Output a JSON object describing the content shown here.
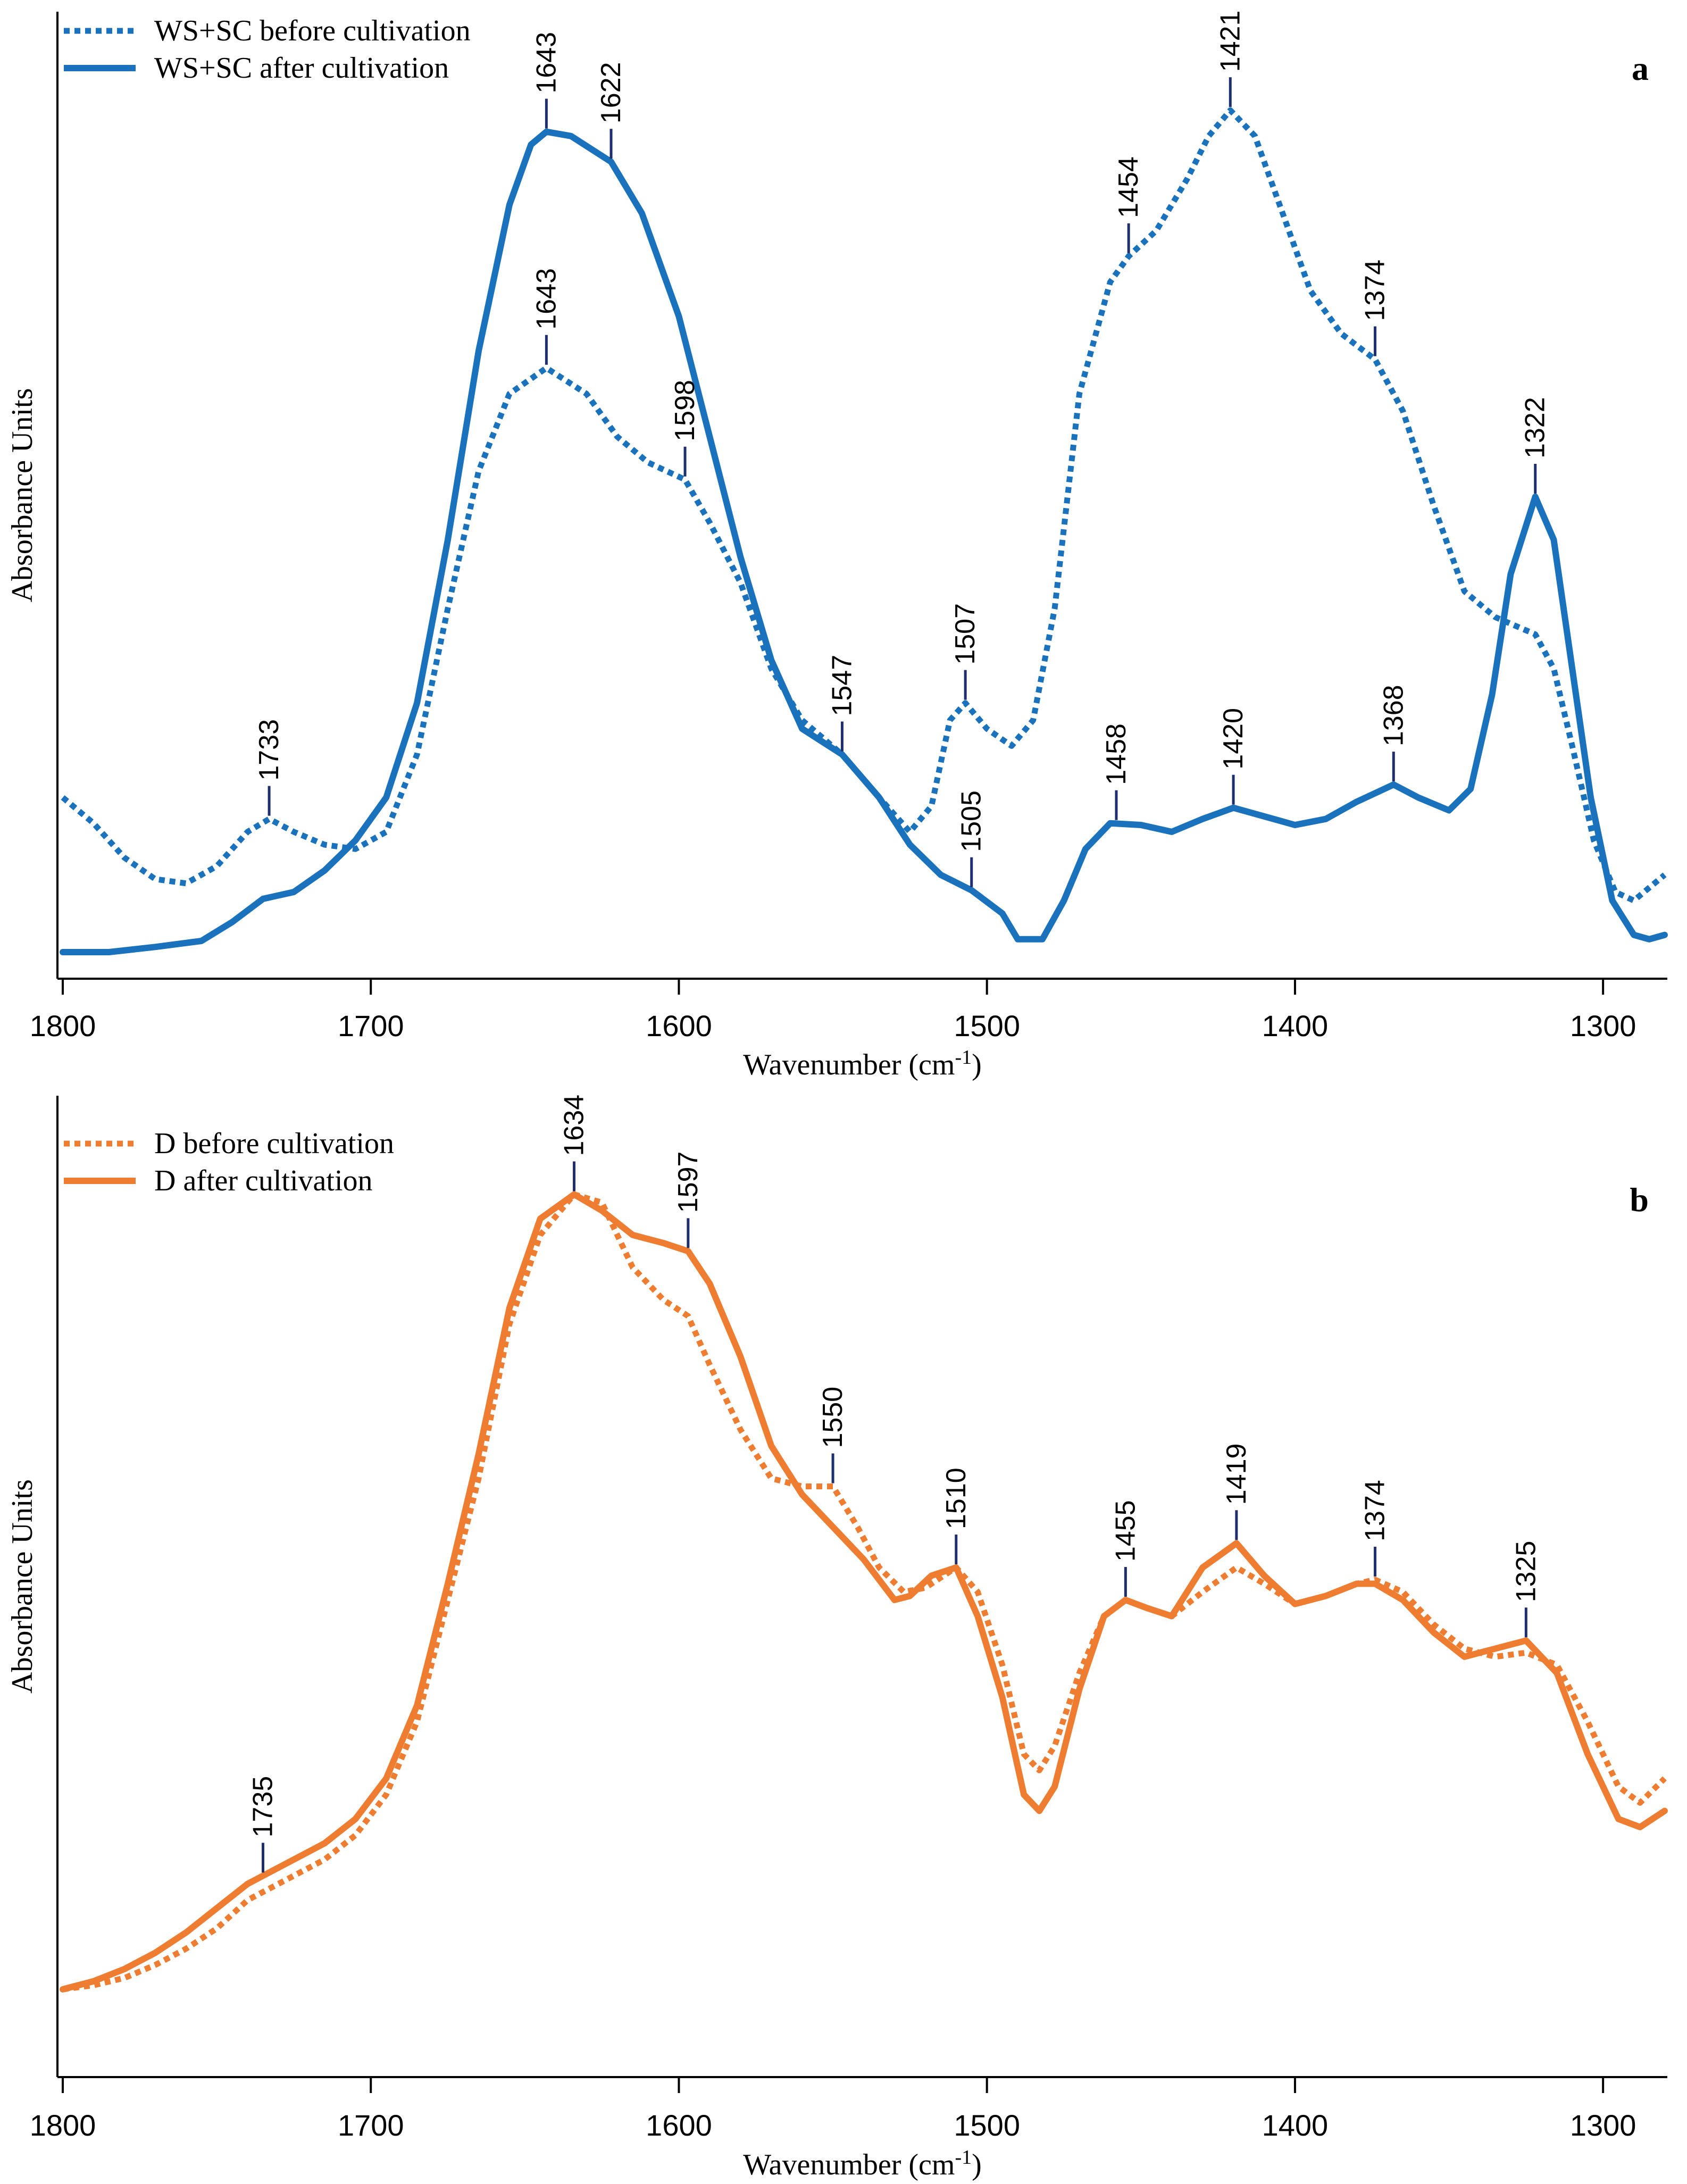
{
  "figure": {
    "tick_color": "#1f2f6e",
    "axis_color": "#000000"
  },
  "chart_data": [
    {
      "type": "line",
      "panel_label": "a",
      "title": "",
      "xlabel": "Wavenumber (cm",
      "xlabel_sup": "-1",
      "xlabel_close": ")",
      "ylabel": "Absorbance Units",
      "xlim": [
        1800,
        1280
      ],
      "ylim": [
        0,
        1
      ],
      "xticks": [
        "1800",
        "1700",
        "1600",
        "1500",
        "1400",
        "1300"
      ],
      "legend_position": "top-left",
      "series": [
        {
          "name": "WS+SC before cultivation",
          "style": "dotted",
          "color": "#1a72bd",
          "points": [
            [
              1800,
              0.18
            ],
            [
              1790,
              0.15
            ],
            [
              1780,
              0.11
            ],
            [
              1770,
              0.085
            ],
            [
              1760,
              0.08
            ],
            [
              1750,
              0.1
            ],
            [
              1740,
              0.14
            ],
            [
              1733,
              0.155
            ],
            [
              1725,
              0.14
            ],
            [
              1715,
              0.125
            ],
            [
              1705,
              0.12
            ],
            [
              1695,
              0.14
            ],
            [
              1685,
              0.23
            ],
            [
              1675,
              0.4
            ],
            [
              1665,
              0.56
            ],
            [
              1655,
              0.65
            ],
            [
              1643,
              0.68
            ],
            [
              1630,
              0.65
            ],
            [
              1620,
              0.6
            ],
            [
              1610,
              0.57
            ],
            [
              1598,
              0.55
            ],
            [
              1590,
              0.5
            ],
            [
              1580,
              0.43
            ],
            [
              1570,
              0.33
            ],
            [
              1560,
              0.27
            ],
            [
              1547,
              0.23
            ],
            [
              1535,
              0.18
            ],
            [
              1525,
              0.14
            ],
            [
              1518,
              0.17
            ],
            [
              1512,
              0.27
            ],
            [
              1507,
              0.29
            ],
            [
              1500,
              0.26
            ],
            [
              1492,
              0.24
            ],
            [
              1485,
              0.27
            ],
            [
              1478,
              0.4
            ],
            [
              1470,
              0.65
            ],
            [
              1460,
              0.78
            ],
            [
              1454,
              0.81
            ],
            [
              1445,
              0.84
            ],
            [
              1435,
              0.9
            ],
            [
              1428,
              0.95
            ],
            [
              1421,
              0.98
            ],
            [
              1413,
              0.95
            ],
            [
              1405,
              0.87
            ],
            [
              1395,
              0.77
            ],
            [
              1385,
              0.72
            ],
            [
              1374,
              0.69
            ],
            [
              1365,
              0.63
            ],
            [
              1355,
              0.52
            ],
            [
              1345,
              0.42
            ],
            [
              1335,
              0.39
            ],
            [
              1322,
              0.37
            ],
            [
              1316,
              0.33
            ],
            [
              1310,
              0.24
            ],
            [
              1303,
              0.13
            ],
            [
              1296,
              0.07
            ],
            [
              1290,
              0.06
            ],
            [
              1285,
              0.075
            ],
            [
              1280,
              0.09
            ]
          ]
        },
        {
          "name": "WS+SC after cultivation",
          "style": "solid",
          "color": "#1a72bd",
          "points": [
            [
              1800,
              0.0
            ],
            [
              1785,
              0.0
            ],
            [
              1770,
              0.006
            ],
            [
              1755,
              0.013
            ],
            [
              1745,
              0.035
            ],
            [
              1735,
              0.062
            ],
            [
              1725,
              0.07
            ],
            [
              1715,
              0.095
            ],
            [
              1705,
              0.13
            ],
            [
              1695,
              0.18
            ],
            [
              1685,
              0.29
            ],
            [
              1675,
              0.48
            ],
            [
              1665,
              0.7
            ],
            [
              1655,
              0.87
            ],
            [
              1648,
              0.94
            ],
            [
              1643,
              0.955
            ],
            [
              1635,
              0.95
            ],
            [
              1622,
              0.92
            ],
            [
              1612,
              0.86
            ],
            [
              1600,
              0.74
            ],
            [
              1590,
              0.6
            ],
            [
              1580,
              0.46
            ],
            [
              1570,
              0.34
            ],
            [
              1560,
              0.26
            ],
            [
              1547,
              0.23
            ],
            [
              1535,
              0.18
            ],
            [
              1525,
              0.125
            ],
            [
              1515,
              0.09
            ],
            [
              1505,
              0.072
            ],
            [
              1495,
              0.045
            ],
            [
              1490,
              0.015
            ],
            [
              1482,
              0.015
            ],
            [
              1475,
              0.06
            ],
            [
              1468,
              0.12
            ],
            [
              1460,
              0.15
            ],
            [
              1450,
              0.148
            ],
            [
              1440,
              0.14
            ],
            [
              1430,
              0.155
            ],
            [
              1420,
              0.168
            ],
            [
              1410,
              0.158
            ],
            [
              1400,
              0.148
            ],
            [
              1390,
              0.155
            ],
            [
              1380,
              0.175
            ],
            [
              1368,
              0.195
            ],
            [
              1360,
              0.18
            ],
            [
              1350,
              0.165
            ],
            [
              1343,
              0.19
            ],
            [
              1336,
              0.3
            ],
            [
              1330,
              0.44
            ],
            [
              1322,
              0.53
            ],
            [
              1316,
              0.48
            ],
            [
              1310,
              0.33
            ],
            [
              1304,
              0.18
            ],
            [
              1297,
              0.06
            ],
            [
              1290,
              0.02
            ],
            [
              1285,
              0.015
            ],
            [
              1280,
              0.02
            ]
          ]
        }
      ],
      "annotations": [
        {
          "label": "1733",
          "x": 1733,
          "y": 0.155
        },
        {
          "label": "1643",
          "x": 1643,
          "y": 0.955
        },
        {
          "label": "1622",
          "x": 1622,
          "y": 0.92
        },
        {
          "label": "1643",
          "x": 1643,
          "y": 0.68
        },
        {
          "label": "1598",
          "x": 1598,
          "y": 0.55
        },
        {
          "label": "1547",
          "x": 1547,
          "y": 0.23
        },
        {
          "label": "1507",
          "x": 1507,
          "y": 0.29
        },
        {
          "label": "1505",
          "x": 1505,
          "y": 0.072
        },
        {
          "label": "1458",
          "x": 1458,
          "y": 0.15
        },
        {
          "label": "1454",
          "x": 1454,
          "y": 0.81
        },
        {
          "label": "1421",
          "x": 1421,
          "y": 0.98
        },
        {
          "label": "1420",
          "x": 1420,
          "y": 0.168
        },
        {
          "label": "1374",
          "x": 1374,
          "y": 0.69
        },
        {
          "label": "1368",
          "x": 1368,
          "y": 0.195
        },
        {
          "label": "1322",
          "x": 1322,
          "y": 0.53
        }
      ]
    },
    {
      "type": "line",
      "panel_label": "b",
      "title": "",
      "xlabel": "Wavenumber (cm",
      "xlabel_sup": "-1",
      "xlabel_close": ")",
      "ylabel": "Absorbance Units",
      "xlim": [
        1800,
        1280
      ],
      "ylim": [
        0,
        1
      ],
      "xticks": [
        "1800",
        "1700",
        "1600",
        "1500",
        "1400",
        "1300"
      ],
      "legend_position": "top-left",
      "series": [
        {
          "name": "D before cultivation",
          "style": "dotted",
          "color": "#ee7d31",
          "points": [
            [
              1800,
              0.0
            ],
            [
              1790,
              0.005
            ],
            [
              1780,
              0.014
            ],
            [
              1770,
              0.03
            ],
            [
              1760,
              0.05
            ],
            [
              1750,
              0.075
            ],
            [
              1740,
              0.11
            ],
            [
              1735,
              0.12
            ],
            [
              1725,
              0.14
            ],
            [
              1715,
              0.16
            ],
            [
              1705,
              0.19
            ],
            [
              1695,
              0.24
            ],
            [
              1685,
              0.33
            ],
            [
              1675,
              0.48
            ],
            [
              1665,
              0.63
            ],
            [
              1655,
              0.82
            ],
            [
              1645,
              0.93
            ],
            [
              1634,
              0.98
            ],
            [
              1625,
              0.97
            ],
            [
              1615,
              0.89
            ],
            [
              1605,
              0.85
            ],
            [
              1597,
              0.83
            ],
            [
              1590,
              0.77
            ],
            [
              1580,
              0.69
            ],
            [
              1570,
              0.63
            ],
            [
              1560,
              0.62
            ],
            [
              1550,
              0.62
            ],
            [
              1542,
              0.57
            ],
            [
              1535,
              0.52
            ],
            [
              1527,
              0.49
            ],
            [
              1520,
              0.495
            ],
            [
              1510,
              0.52
            ],
            [
              1503,
              0.49
            ],
            [
              1495,
              0.4
            ],
            [
              1488,
              0.29
            ],
            [
              1483,
              0.27
            ],
            [
              1478,
              0.3
            ],
            [
              1470,
              0.39
            ],
            [
              1462,
              0.46
            ],
            [
              1455,
              0.48
            ],
            [
              1448,
              0.47
            ],
            [
              1440,
              0.46
            ],
            [
              1430,
              0.49
            ],
            [
              1419,
              0.52
            ],
            [
              1410,
              0.5
            ],
            [
              1400,
              0.475
            ],
            [
              1390,
              0.485
            ],
            [
              1380,
              0.5
            ],
            [
              1374,
              0.505
            ],
            [
              1365,
              0.49
            ],
            [
              1355,
              0.45
            ],
            [
              1345,
              0.42
            ],
            [
              1335,
              0.41
            ],
            [
              1325,
              0.415
            ],
            [
              1315,
              0.4
            ],
            [
              1305,
              0.33
            ],
            [
              1295,
              0.25
            ],
            [
              1288,
              0.23
            ],
            [
              1280,
              0.26
            ]
          ]
        },
        {
          "name": "D after cultivation",
          "style": "solid",
          "color": "#ee7d31",
          "points": [
            [
              1800,
              0.0
            ],
            [
              1790,
              0.01
            ],
            [
              1780,
              0.025
            ],
            [
              1770,
              0.045
            ],
            [
              1760,
              0.07
            ],
            [
              1750,
              0.1
            ],
            [
              1740,
              0.13
            ],
            [
              1735,
              0.14
            ],
            [
              1725,
              0.16
            ],
            [
              1715,
              0.18
            ],
            [
              1705,
              0.21
            ],
            [
              1695,
              0.26
            ],
            [
              1685,
              0.35
            ],
            [
              1675,
              0.5
            ],
            [
              1665,
              0.66
            ],
            [
              1655,
              0.84
            ],
            [
              1645,
              0.95
            ],
            [
              1634,
              0.98
            ],
            [
              1625,
              0.96
            ],
            [
              1615,
              0.93
            ],
            [
              1605,
              0.92
            ],
            [
              1597,
              0.91
            ],
            [
              1590,
              0.87
            ],
            [
              1580,
              0.78
            ],
            [
              1570,
              0.67
            ],
            [
              1560,
              0.61
            ],
            [
              1550,
              0.57
            ],
            [
              1540,
              0.53
            ],
            [
              1530,
              0.48
            ],
            [
              1525,
              0.485
            ],
            [
              1518,
              0.51
            ],
            [
              1510,
              0.52
            ],
            [
              1503,
              0.46
            ],
            [
              1495,
              0.36
            ],
            [
              1488,
              0.24
            ],
            [
              1483,
              0.22
            ],
            [
              1478,
              0.25
            ],
            [
              1470,
              0.37
            ],
            [
              1462,
              0.46
            ],
            [
              1455,
              0.48
            ],
            [
              1448,
              0.47
            ],
            [
              1440,
              0.46
            ],
            [
              1430,
              0.52
            ],
            [
              1419,
              0.55
            ],
            [
              1410,
              0.51
            ],
            [
              1400,
              0.475
            ],
            [
              1390,
              0.485
            ],
            [
              1380,
              0.5
            ],
            [
              1374,
              0.5
            ],
            [
              1365,
              0.48
            ],
            [
              1355,
              0.44
            ],
            [
              1345,
              0.41
            ],
            [
              1335,
              0.42
            ],
            [
              1325,
              0.43
            ],
            [
              1315,
              0.39
            ],
            [
              1305,
              0.29
            ],
            [
              1295,
              0.21
            ],
            [
              1288,
              0.2
            ],
            [
              1280,
              0.22
            ]
          ]
        }
      ],
      "annotations": [
        {
          "label": "1735",
          "x": 1735,
          "y": 0.14
        },
        {
          "label": "1634",
          "x": 1634,
          "y": 0.98
        },
        {
          "label": "1597",
          "x": 1597,
          "y": 0.91
        },
        {
          "label": "1550",
          "x": 1550,
          "y": 0.62
        },
        {
          "label": "1510",
          "x": 1510,
          "y": 0.52
        },
        {
          "label": "1455",
          "x": 1455,
          "y": 0.48
        },
        {
          "label": "1419",
          "x": 1419,
          "y": 0.55
        },
        {
          "label": "1374",
          "x": 1374,
          "y": 0.505
        },
        {
          "label": "1325",
          "x": 1325,
          "y": 0.43
        }
      ]
    }
  ]
}
